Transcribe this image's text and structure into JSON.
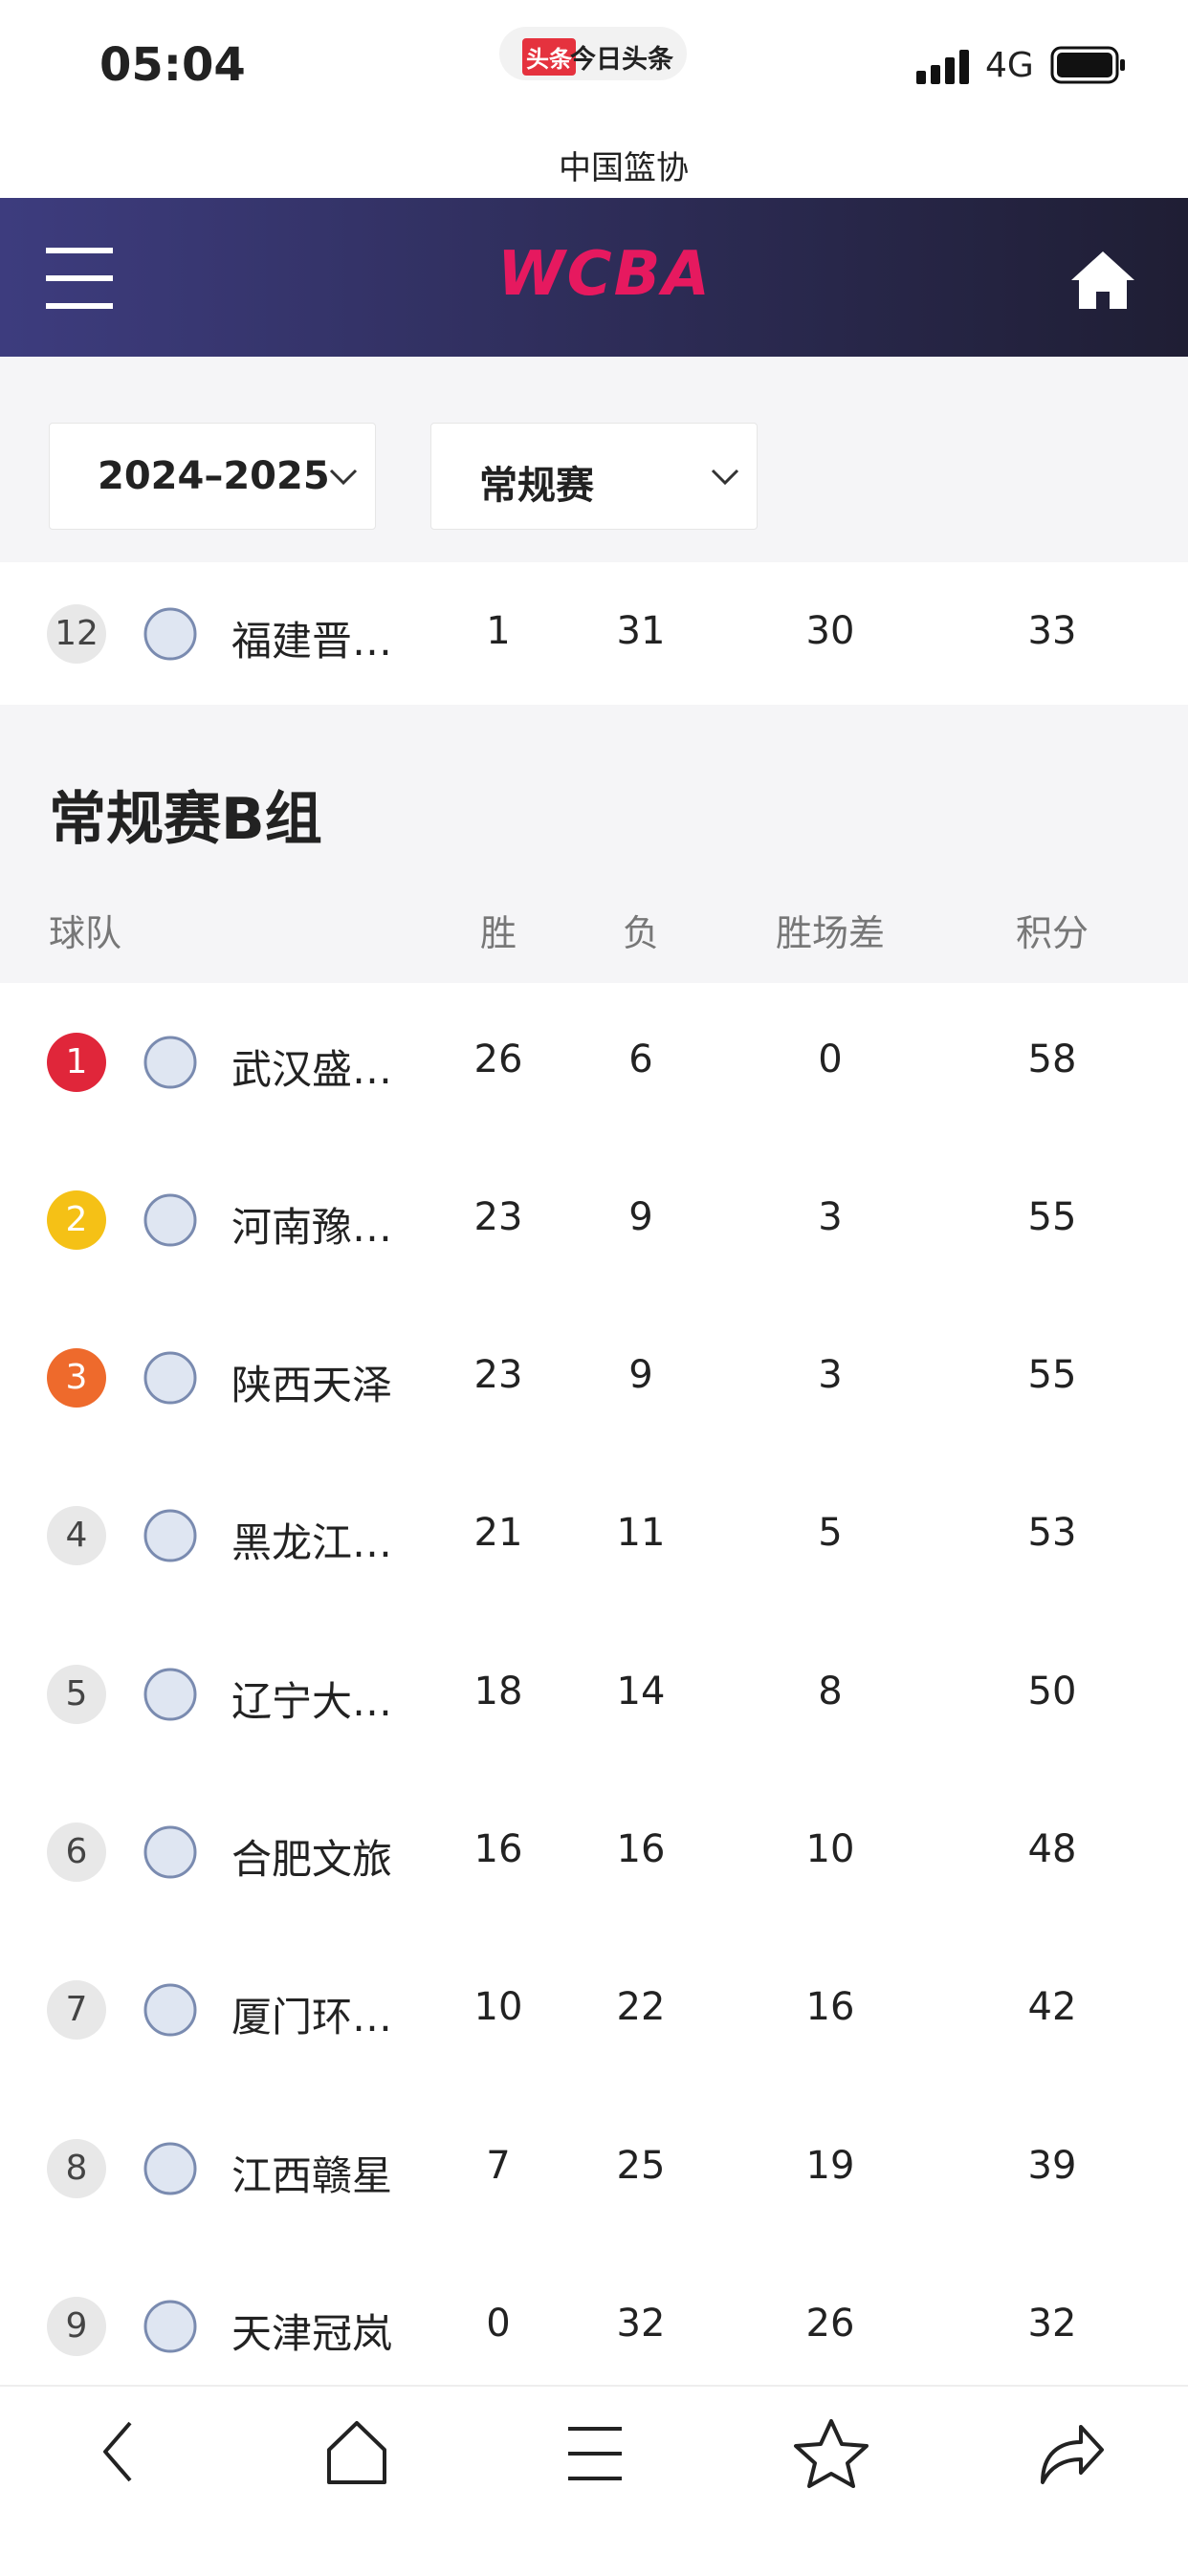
{
  "status_bar": {
    "time": "05:04",
    "app_badge": "头条",
    "app_name": "今日头条",
    "network": "4G"
  },
  "search": {
    "text": "中国篮协"
  },
  "header": {
    "logo": "WCBA"
  },
  "filters": {
    "season": "2024–2025",
    "stage": "常规赛"
  },
  "prev_group_last_row": {
    "rank": 12,
    "team": "福建晋…",
    "wins": 1,
    "losses": 31,
    "games_behind": 30,
    "points": 33
  },
  "group": {
    "title": "常规赛B组",
    "columns": [
      "球队",
      "胜",
      "负",
      "胜场差",
      "积分"
    ],
    "rows": [
      {
        "rank": 1,
        "team": "武汉盛…",
        "wins": 26,
        "losses": 6,
        "games_behind": 0,
        "points": 58
      },
      {
        "rank": 2,
        "team": "河南豫…",
        "wins": 23,
        "losses": 9,
        "games_behind": 3,
        "points": 55
      },
      {
        "rank": 3,
        "team": "陕西天泽",
        "wins": 23,
        "losses": 9,
        "games_behind": 3,
        "points": 55
      },
      {
        "rank": 4,
        "team": "黑龙江…",
        "wins": 21,
        "losses": 11,
        "games_behind": 5,
        "points": 53
      },
      {
        "rank": 5,
        "team": "辽宁大…",
        "wins": 18,
        "losses": 14,
        "games_behind": 8,
        "points": 50
      },
      {
        "rank": 6,
        "team": "合肥文旅",
        "wins": 16,
        "losses": 16,
        "games_behind": 10,
        "points": 48
      },
      {
        "rank": 7,
        "team": "厦门环…",
        "wins": 10,
        "losses": 22,
        "games_behind": 16,
        "points": 42
      },
      {
        "rank": 8,
        "team": "江西赣星",
        "wins": 7,
        "losses": 25,
        "games_behind": 19,
        "points": 39
      },
      {
        "rank": 9,
        "team": "天津冠岚",
        "wins": 0,
        "losses": 32,
        "games_behind": 26,
        "points": 32
      }
    ]
  }
}
